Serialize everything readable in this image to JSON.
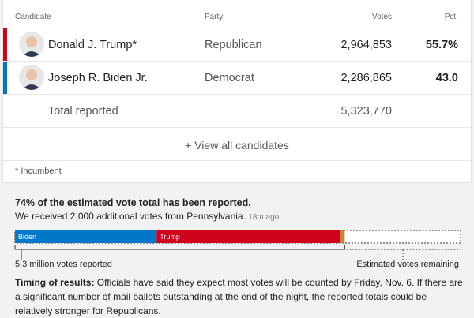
{
  "table": {
    "header": [
      "Candidate",
      "Party",
      "Votes",
      "Pct."
    ],
    "rows": [
      {
        "name": "Donald J. Trump*",
        "party": "Republican",
        "votes": "2,964,853",
        "pct": "55.7%",
        "color": "#d0021b"
      },
      {
        "name": "Joseph R. Biden Jr.",
        "party": "Democrat",
        "votes": "2,286,865",
        "pct": "43.0",
        "color": "#0077c8"
      }
    ],
    "total_label": "Total reported",
    "total_votes": "5,323,770",
    "view_all": "+ View all candidates",
    "footnote": "* Incumbent"
  },
  "progress": {
    "headline_pct": "74%",
    "headline_rest": "of the estimated vote total has been reported.",
    "update": "We received 2,000 additional votes from Pennsylvania.",
    "update_time": "18m ago",
    "bar_labels": [
      "Biden",
      "Trump"
    ],
    "reported_label": "5.3 million votes reported",
    "remaining_label": "Estimated votes remaining",
    "others_color": "#c8843c",
    "timing_label": "Timing of results:",
    "timing_text": "Officials have said they expect most votes will be counted by Friday, Nov. 6. If there are a significant number of mail ballots outstanding at the end of the night, the reported totals could be relatively stronger for Republicans."
  }
}
